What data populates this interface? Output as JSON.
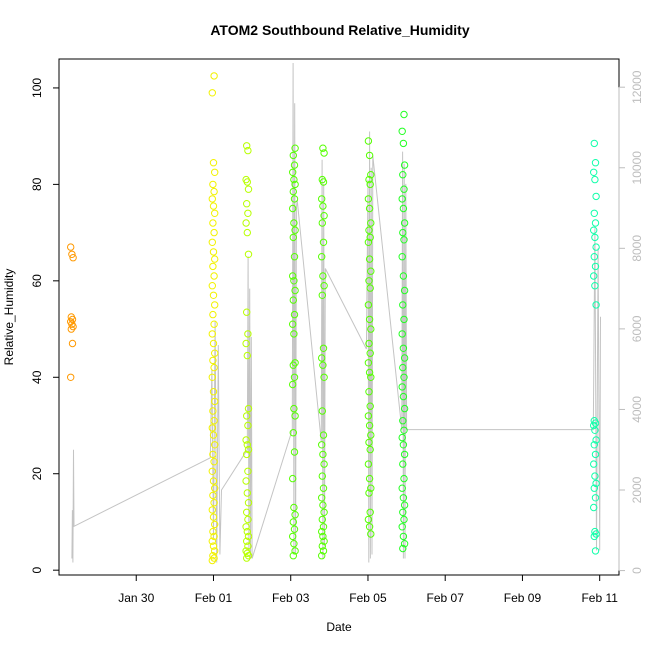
{
  "chart_data": {
    "type": "scatter",
    "title": "ATOM2 Southbound Relative_Humidity",
    "xlabel": "Date",
    "ylabel": "Relative_Humidity",
    "x_domain": [
      "2020-01-28T00:00",
      "2020-02-11T12:00"
    ],
    "ylim": [
      -1,
      106
    ],
    "y2lim": [
      -110,
      12700
    ],
    "x_ticks": [
      {
        "label": "Jan 30",
        "x": "2020-01-30"
      },
      {
        "label": "Feb 01",
        "x": "2020-02-01"
      },
      {
        "label": "Feb 03",
        "x": "2020-02-03"
      },
      {
        "label": "Feb 05",
        "x": "2020-02-05"
      },
      {
        "label": "Feb 07",
        "x": "2020-02-07"
      },
      {
        "label": "Feb 09",
        "x": "2020-02-09"
      },
      {
        "label": "Feb 11",
        "x": "2020-02-11"
      }
    ],
    "y_ticks": [
      "0",
      "20",
      "40",
      "60",
      "80",
      "100"
    ],
    "y_tick_values": [
      0,
      20,
      40,
      60,
      80,
      100
    ],
    "y2_ticks": [
      "0",
      "2000",
      "4000",
      "6000",
      "8000",
      "10000",
      "12000"
    ],
    "y2_tick_values": [
      0,
      2000,
      4000,
      6000,
      8000,
      10000,
      12000
    ],
    "grid": false,
    "colors": {
      "orange": "#ff9900",
      "yellow": "#f2f200",
      "yellowgreen": "#b8ff00",
      "green": "#55ff00",
      "green2": "#22ff22",
      "cyan": "#11ffaa",
      "line": "#c4c4c4"
    },
    "clusters": [
      {
        "x": "2020-01-28T08:00",
        "color": "orange",
        "values": [
          67,
          65.5,
          64.8,
          52.5,
          52,
          51.5,
          51,
          50.5,
          50,
          47,
          40
        ]
      },
      {
        "x": "2020-02-01T00:00",
        "color": "yellow",
        "values": [
          102.5,
          99,
          84.5,
          82.5,
          80,
          78.5,
          77,
          75.5,
          74,
          72,
          70,
          68,
          66,
          64.5,
          63,
          61,
          59,
          57,
          55,
          53,
          51,
          49,
          47,
          45,
          43.5,
          42,
          40,
          37,
          35,
          33,
          31,
          29.5,
          28,
          26,
          24,
          22.5,
          20.5,
          18.5,
          17,
          15.5,
          14,
          12.5,
          11,
          9.5,
          8,
          7,
          6,
          5,
          4,
          3,
          2.5,
          2
        ]
      },
      {
        "x": "2020-02-01T21:00",
        "color": "yellowgreen",
        "values": [
          88,
          87,
          81,
          80.5,
          79,
          76,
          74,
          72,
          70,
          65.5,
          53.5,
          49,
          47,
          44.5,
          33.5,
          32,
          30,
          27,
          26,
          25,
          24,
          20.5,
          18.5,
          16,
          14,
          12,
          10.5,
          9,
          8,
          7,
          6,
          5,
          4,
          3.5,
          3,
          2.5
        ]
      },
      {
        "x": "2020-02-03T02:00",
        "color": "green",
        "values": [
          87.5,
          86,
          84,
          82.5,
          81,
          80,
          78.5,
          77,
          75,
          72,
          70.5,
          69,
          65,
          61,
          60,
          58,
          56,
          53,
          51,
          49,
          43,
          42.5,
          40,
          38.5,
          33.5,
          32,
          28.5,
          24.5,
          19,
          13,
          11.5,
          10,
          8.5,
          7,
          5.5,
          4,
          3
        ]
      },
      {
        "x": "2020-02-03T20:00",
        "color": "green",
        "values": [
          87.5,
          86.5,
          81,
          80.5,
          77,
          75.5,
          73.5,
          72,
          68,
          65,
          61,
          59,
          57,
          46,
          44,
          42.5,
          40,
          33,
          28,
          26,
          24,
          22,
          19.5,
          17,
          15,
          13.5,
          12,
          10.5,
          9,
          8,
          7,
          6,
          5,
          4,
          3
        ]
      },
      {
        "x": "2020-02-05T01:00",
        "color": "green",
        "values": [
          89,
          86,
          82,
          81,
          80,
          77,
          75,
          72,
          70.5,
          69,
          68,
          64.5,
          62,
          60,
          58.5,
          55,
          52,
          50,
          47,
          45,
          43,
          41,
          40,
          37,
          34,
          32,
          30,
          28,
          26.5,
          25,
          22,
          19,
          17,
          16,
          12,
          10.5,
          9,
          7.5
        ]
      },
      {
        "x": "2020-02-05T22:00",
        "color": "green2",
        "values": [
          94.5,
          91,
          88.5,
          84,
          82,
          79,
          77,
          75,
          72,
          70,
          68.5,
          65,
          61,
          58,
          55,
          52,
          49,
          46,
          44,
          42,
          40,
          38,
          36,
          33.5,
          31,
          29,
          27.5,
          26,
          24,
          22,
          19,
          17,
          15,
          13.5,
          12,
          10.5,
          9,
          7,
          5.5,
          4.5
        ]
      },
      {
        "x": "2020-02-10T21:00",
        "color": "cyan",
        "values": [
          88.5,
          84.5,
          82.5,
          81,
          77.5,
          74,
          72,
          70.5,
          69,
          67,
          65,
          63,
          61,
          59,
          55,
          31,
          30.5,
          30,
          29,
          27,
          26,
          24,
          22,
          19.5,
          18,
          17,
          15,
          13,
          8,
          7.5,
          7,
          4
        ]
      }
    ],
    "line_series": {
      "axis": "right",
      "points": [
        [
          "2020-01-28T08:00",
          300
        ],
        [
          "2020-01-28T08:20",
          1500
        ],
        [
          "2020-01-28T08:40",
          200
        ],
        [
          "2020-01-28T09:00",
          3000
        ],
        [
          "2020-01-28T09:20",
          1100
        ],
        [
          "2020-01-31T22:00",
          2800
        ],
        [
          "2020-01-31T23:00",
          5000
        ],
        [
          "2020-02-01T00:00",
          800
        ],
        [
          "2020-02-01T01:00",
          6200
        ],
        [
          "2020-02-01T02:00",
          200
        ],
        [
          "2020-02-01T03:00",
          5600
        ],
        [
          "2020-02-01T04:00",
          400
        ],
        [
          "2020-02-01T05:00",
          2000
        ],
        [
          "2020-02-01T21:00",
          3000
        ],
        [
          "2020-02-01T21:30",
          7800
        ],
        [
          "2020-02-01T22:00",
          500
        ],
        [
          "2020-02-01T22:30",
          7000
        ],
        [
          "2020-02-01T23:00",
          300
        ],
        [
          "2020-02-01T23:30",
          5800
        ],
        [
          "2020-02-02T00:00",
          300
        ],
        [
          "2020-02-03T01:00",
          3500
        ],
        [
          "2020-02-03T01:30",
          12600
        ],
        [
          "2020-02-03T02:00",
          400
        ],
        [
          "2020-02-03T02:30",
          11600
        ],
        [
          "2020-02-03T03:00",
          400
        ],
        [
          "2020-02-03T03:30",
          9000
        ],
        [
          "2020-02-03T04:00",
          9200
        ],
        [
          "2020-02-03T19:00",
          3200
        ],
        [
          "2020-02-03T19:30",
          10200
        ],
        [
          "2020-02-03T20:00",
          300
        ],
        [
          "2020-02-03T20:30",
          9600
        ],
        [
          "2020-02-03T21:00",
          600
        ],
        [
          "2020-02-03T21:30",
          7500
        ],
        [
          "2020-02-04T23:00",
          5500
        ],
        [
          "2020-02-05T00:00",
          9700
        ],
        [
          "2020-02-05T00:30",
          200
        ],
        [
          "2020-02-05T01:00",
          10900
        ],
        [
          "2020-02-05T01:30",
          300
        ],
        [
          "2020-02-05T02:00",
          10000
        ],
        [
          "2020-02-05T02:30",
          400
        ],
        [
          "2020-02-05T03:00",
          10300
        ],
        [
          "2020-02-05T21:00",
          3500
        ],
        [
          "2020-02-05T21:30",
          10400
        ],
        [
          "2020-02-05T22:00",
          300
        ],
        [
          "2020-02-05T22:30",
          10100
        ],
        [
          "2020-02-05T23:00",
          300
        ],
        [
          "2020-02-05T23:30",
          9600
        ],
        [
          "2020-02-06T00:00",
          3500
        ],
        [
          "2020-02-10T20:00",
          3500
        ],
        [
          "2020-02-10T21:00",
          8500
        ],
        [
          "2020-02-10T22:00",
          500
        ],
        [
          "2020-02-10T23:00",
          8000
        ],
        [
          "2020-02-11T00:00",
          500
        ],
        [
          "2020-02-11T00:30",
          6300
        ]
      ]
    }
  }
}
